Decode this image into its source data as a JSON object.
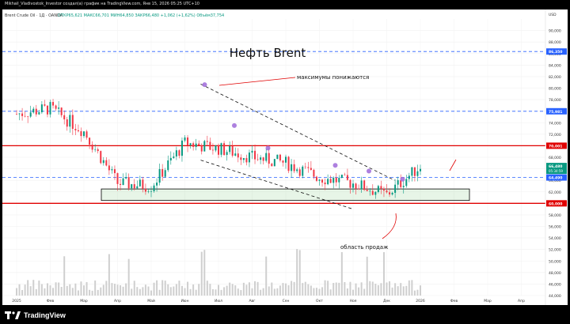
{
  "header": {
    "attribution": "Mikhail_Vladivostok_Investor создал(а) график на TradingView.com, Янв 15, 2026 05:25 UTC+10"
  },
  "legend": {
    "symbol": "Brent Crude Oil · 1Д · OANDA",
    "ohlc": "ОТКР65,621  МАКС66,701  МИН64,850  ЗАКР66,480  +1,062 (+1,62%)  Объём37,754"
  },
  "footer": {
    "brand": "TradingView"
  },
  "chart_data": {
    "type": "candlestick",
    "title": "Нефть Brent",
    "currency": "USD",
    "ylim": [
      44,
      92
    ],
    "y_ticks": [
      44,
      46,
      48,
      50,
      52,
      54,
      56,
      58,
      60,
      62,
      64,
      66,
      68,
      70,
      72,
      74,
      76,
      78,
      80,
      82,
      84,
      86,
      88,
      90
    ],
    "x_ticks": [
      "2025",
      "Фев",
      "Мар",
      "Апр",
      "Май",
      "Июн",
      "Июл",
      "Авг",
      "Сен",
      "Окт",
      "Ноя",
      "Дек",
      "2026",
      "Фев",
      "Мар",
      "Апр"
    ],
    "price_tags": [
      {
        "value": 86.35,
        "label": "86,350",
        "color": "#2962ff"
      },
      {
        "value": 75.981,
        "label": "75,981",
        "color": "#2962ff"
      },
      {
        "value": 70.001,
        "label": "70,001",
        "color": "#e00000"
      },
      {
        "value": 66.48,
        "label": "66,480",
        "color": "#089981"
      },
      {
        "value": 64.49,
        "label": "64,490",
        "color": "#2962ff"
      },
      {
        "value": 60.0,
        "label": "60,000",
        "color": "#e00000"
      }
    ],
    "last_price_sub": "05:34:59",
    "annotations": {
      "highs_label": "максимумы понижаются",
      "sell_zone_label": "область продаж"
    },
    "key_closes": [
      {
        "month": "2025",
        "close": 75.5
      },
      {
        "month": "Фев",
        "close": 76.5
      },
      {
        "month": "Мар",
        "close": 72.5
      },
      {
        "month": "Апр",
        "close": 63.5
      },
      {
        "month": "Май",
        "close": 63.0
      },
      {
        "month": "Июн",
        "close": 70.5
      },
      {
        "month": "Июл",
        "close": 69.5
      },
      {
        "month": "Авг",
        "close": 68.0
      },
      {
        "month": "Сен",
        "close": 67.0
      },
      {
        "month": "Окт",
        "close": 64.5
      },
      {
        "month": "Ноя",
        "close": 63.5
      },
      {
        "month": "Дек",
        "close": 61.5
      },
      {
        "month": "2026",
        "close": 66.48
      }
    ],
    "horizontal_levels": [
      86.35,
      75.981,
      70.001,
      64.49,
      60.0
    ],
    "zone": [
      60.5,
      62.5
    ],
    "downtrend_lines": [
      {
        "from": [
          "Июн",
          80.7
        ],
        "to": [
          "Дек",
          64.0
        ]
      },
      {
        "from": [
          "Июн",
          67.5
        ],
        "to": [
          "Ноя",
          59.0
        ]
      }
    ]
  }
}
